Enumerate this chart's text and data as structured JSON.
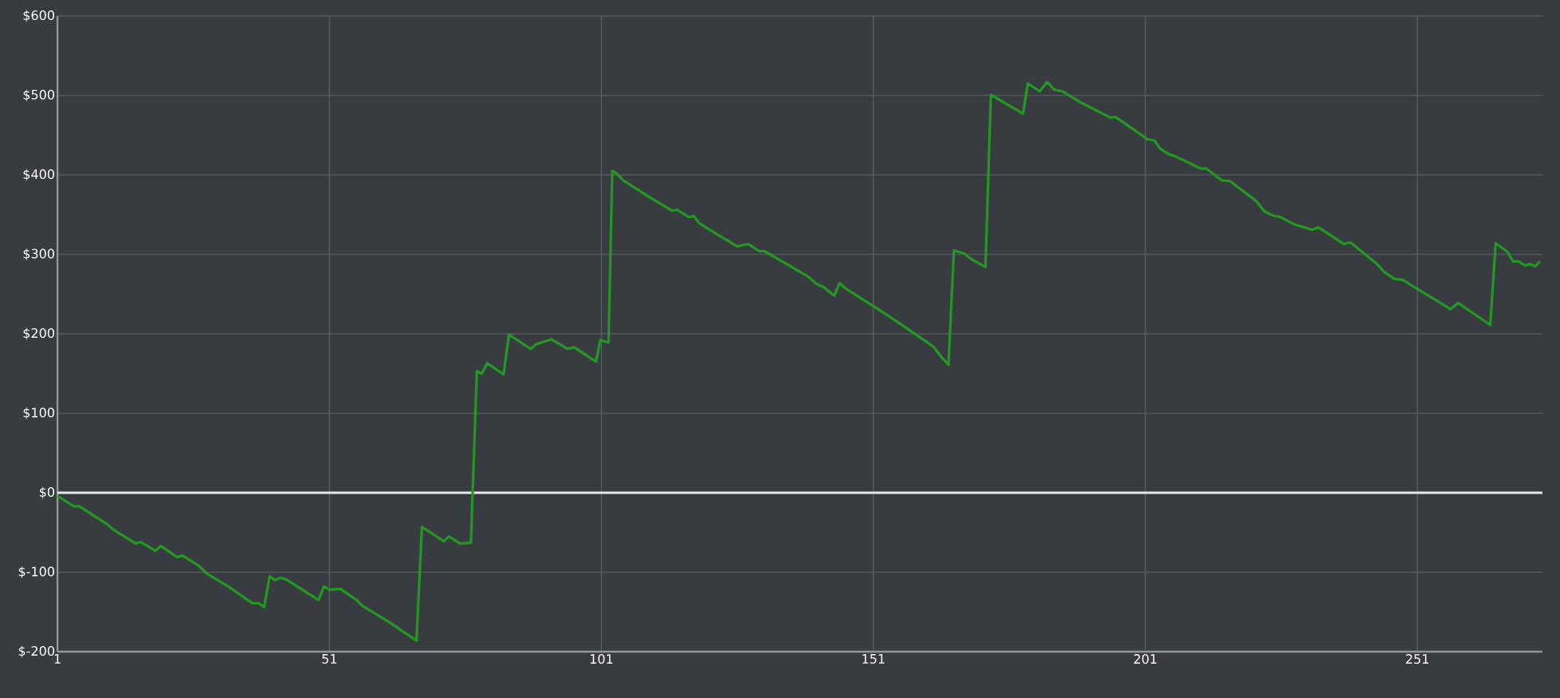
{
  "chart_data": {
    "type": "line",
    "x": [
      1,
      4,
      5,
      10,
      11.4,
      15.4,
      16.3,
      19,
      20,
      23,
      24,
      27,
      28.5,
      32.4,
      36.8,
      38,
      39,
      40,
      41,
      42,
      43,
      49,
      50,
      51,
      53,
      56,
      57,
      62,
      67,
      68,
      72,
      73,
      75,
      77,
      78.1,
      79,
      80,
      83,
      84,
      88,
      89,
      91.8,
      94.8,
      96,
      100,
      100.8,
      102.3,
      103,
      103.8,
      105,
      109.6,
      114,
      115,
      117,
      118,
      119,
      122.8,
      126,
      128,
      130,
      131,
      135.5,
      139,
      140.7,
      141.8,
      143.8,
      144.8,
      145.7,
      153,
      155,
      162,
      163.5,
      164.8,
      165.8,
      167.7,
      169,
      171.6,
      172.6,
      178.5,
      179.4,
      181.6,
      182.9,
      184.3,
      185.8,
      188.9,
      194.6,
      195.5,
      201.4,
      202.7,
      203.7,
      205.3,
      206.3,
      211.2,
      212.2,
      215.1,
      216.6,
      221.4,
      222.9,
      224.4,
      225.8,
      228.3,
      230.7,
      231.7,
      232.8,
      237.5,
      238.7,
      243.4,
      244.9,
      246.8,
      248.3,
      257.1,
      258.5,
      264.4,
      265.4,
      267.6,
      268.6,
      269.6,
      270.8,
      271.7,
      272.7,
      273.5
    ],
    "series": [
      {
        "color": "#229a22",
        "values": [
          -4,
          -17,
          -17,
          -39,
          -47,
          -64,
          -62,
          -73,
          -67,
          -81,
          -79,
          -92,
          -102,
          -118,
          -139,
          -139,
          -144,
          -105,
          -110,
          -107,
          -109,
          -135,
          -118,
          -122,
          -121,
          -135,
          -142,
          -163,
          -186,
          -43,
          -61,
          -55,
          -64,
          -63,
          153,
          150,
          163,
          149,
          199,
          181,
          187,
          193,
          181,
          183,
          165,
          192,
          189,
          405,
          402,
          393,
          373,
          355,
          356,
          347,
          348,
          339,
          323,
          310,
          313,
          304,
          304,
          286,
          272,
          262,
          259,
          248,
          264,
          258,
          226,
          217,
          184,
          171,
          161,
          305,
          301,
          294,
          284,
          501,
          477,
          515,
          505,
          517,
          507,
          505,
          492,
          472,
          473,
          445,
          443,
          433,
          426,
          424,
          408,
          408,
          393,
          392,
          367,
          354,
          349,
          347,
          338,
          333,
          331,
          334,
          313,
          315,
          289,
          278,
          269,
          268,
          231,
          239,
          211,
          314,
          303,
          291,
          291,
          286,
          288,
          285,
          291
        ]
      }
    ],
    "xlim": [
      1,
      274
    ],
    "ylim": [
      -200,
      600
    ],
    "xticks": [
      1,
      51,
      101,
      151,
      201,
      251
    ],
    "yticks": [
      {
        "value": -200,
        "label": "$-200"
      },
      {
        "value": -100,
        "label": "$-100"
      },
      {
        "value": 0,
        "label": "$0"
      },
      {
        "value": 100,
        "label": "$100"
      },
      {
        "value": 200,
        "label": "$200"
      },
      {
        "value": 300,
        "label": "$300"
      },
      {
        "value": 400,
        "label": "$400"
      },
      {
        "value": 500,
        "label": "$500"
      },
      {
        "value": 600,
        "label": "$600"
      }
    ],
    "grid": true,
    "marker": "none",
    "line_style": "solid",
    "ref_lines": [
      {
        "axis": "y",
        "value": 0,
        "color": "#e8e8e8"
      }
    ]
  }
}
